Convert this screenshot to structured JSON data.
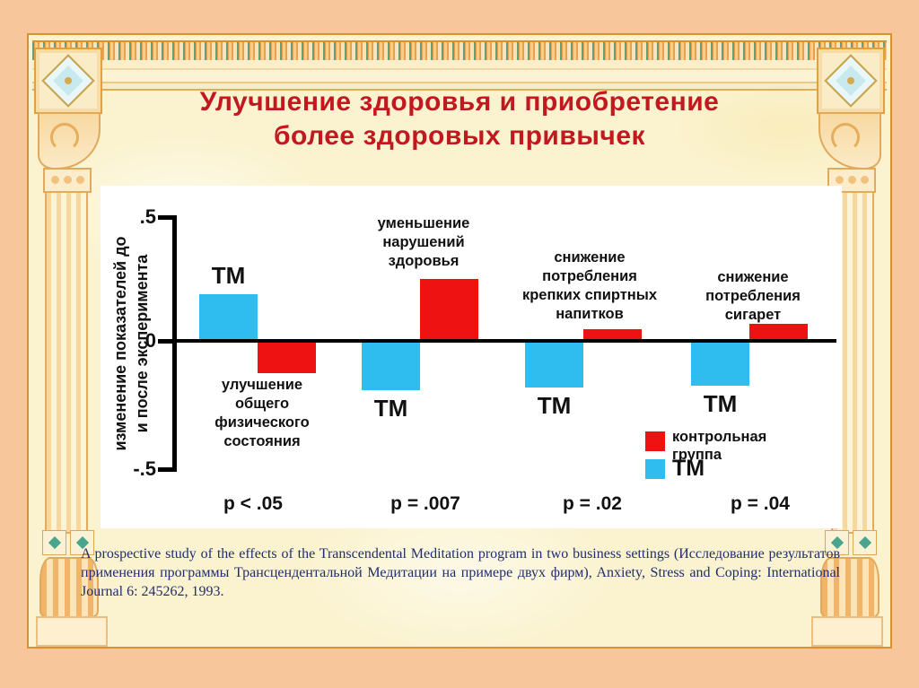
{
  "slide": {
    "title": "Улучшение здоровья и приобретение\nболее здоровых привычек",
    "citation": "A prospective study of the effects of the Transcendental Meditation program in two business settings (Исследование результатов применения программы Трансцендентальной Медитации на примере двух фирм), Anxiety, Stress and Coping: International Journal 6: 245262, 1993.",
    "colors": {
      "title": "#C2181F",
      "citation": "#1F2E6E",
      "outer_background": "#F8C69B",
      "slide_background": "#FBF3D0",
      "frame_line": "#D9912F"
    }
  },
  "chart_data": {
    "type": "bar",
    "title": "",
    "ylabel": "изменение показателей до\nи после эксперимента",
    "ytick_labels": [
      ".5",
      "0",
      "-.5"
    ],
    "ylim": [
      -0.5,
      0.5
    ],
    "grid": false,
    "categories": [
      "улучшение\nобщего\nфизического\nсостояния",
      "уменьшение\nнарушений\nздоровья",
      "снижение\nпотребления\nкрепких спиртных\nнапитков",
      "снижение\nпотребления\nсигарет"
    ],
    "series": [
      {
        "name": "ТМ",
        "color": "#2FBDEF",
        "values": [
          0.18,
          -0.19,
          -0.18,
          -0.17
        ]
      },
      {
        "name": "контрольная группа",
        "color": "#EE1212",
        "values": [
          -0.12,
          0.24,
          0.04,
          0.06
        ]
      }
    ],
    "p_values": [
      "p < .05",
      "p = .007",
      "p = .02",
      "p = .04"
    ],
    "bar_annotation": "ТМ",
    "legend": {
      "control_label": "контрольная\nгруппа",
      "tm_label": "ТМ",
      "position": "inside lower right"
    }
  }
}
